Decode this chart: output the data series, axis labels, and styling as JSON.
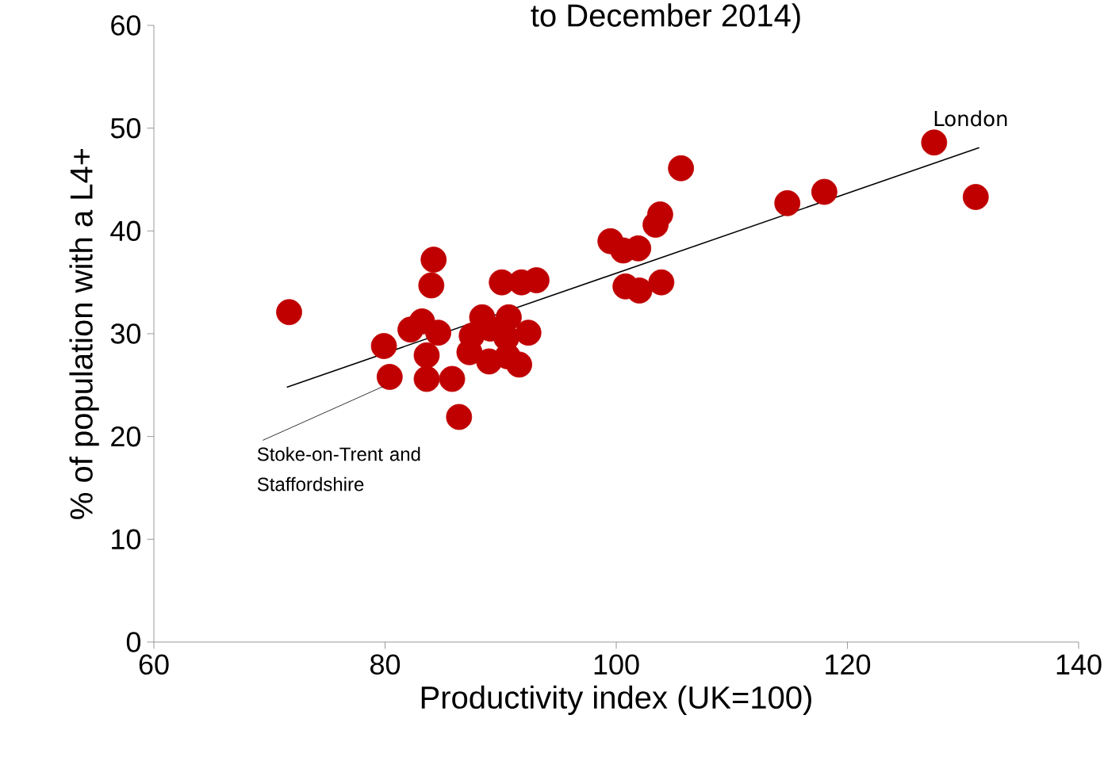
{
  "chart_data": {
    "type": "scatter",
    "title": "to December 2014)",
    "xlabel": "Productivity index (UK=100)",
    "ylabel": "% of population with a L4+",
    "xlim": [
      60,
      140
    ],
    "xticks": [
      60,
      80,
      100,
      120,
      140
    ],
    "ylim": [
      0,
      60
    ],
    "yticks": [
      0,
      10,
      20,
      30,
      40,
      50,
      60
    ],
    "grid": false,
    "series": [
      {
        "color": "#c00000",
        "marker": "circle",
        "x": [
          71.7,
          79.9,
          80.4,
          82.2,
          83.2,
          84.0,
          84.2,
          83.6,
          83.6,
          84.6,
          85.8,
          86.4,
          87.3,
          88.4,
          89.1,
          89.0,
          90.1,
          90.5,
          90.6,
          90.7,
          91.6,
          92.4,
          91.8,
          93.1,
          87.5,
          99.5,
          100.6,
          101.9,
          100.8,
          102.0,
          103.9,
          103.4,
          103.8,
          105.6,
          114.8,
          118.0,
          127.5,
          131.1
        ],
        "values": [
          32.1,
          28.8,
          25.8,
          30.4,
          31.2,
          34.7,
          37.2,
          27.9,
          25.6,
          30.1,
          25.6,
          21.9,
          28.2,
          31.6,
          30.5,
          27.3,
          35.0,
          29.6,
          27.8,
          31.6,
          27.0,
          30.1,
          35.0,
          35.2,
          29.8,
          39.0,
          38.1,
          38.3,
          34.6,
          34.2,
          35.0,
          40.6,
          41.6,
          46.1,
          42.7,
          43.8,
          48.6,
          43.3
        ]
      },
      {
        "type": "line",
        "color": "#000000",
        "marker": "none",
        "x": [
          71.5,
          131.4
        ],
        "values": [
          24.8,
          48.1
        ]
      }
    ],
    "annotations": [
      {
        "text": "London",
        "x": 127.5,
        "y": 48.6
      },
      {
        "text": "Stoke-on-Trent and Staffordshire",
        "x": 80.4,
        "y": 25.8
      }
    ]
  }
}
